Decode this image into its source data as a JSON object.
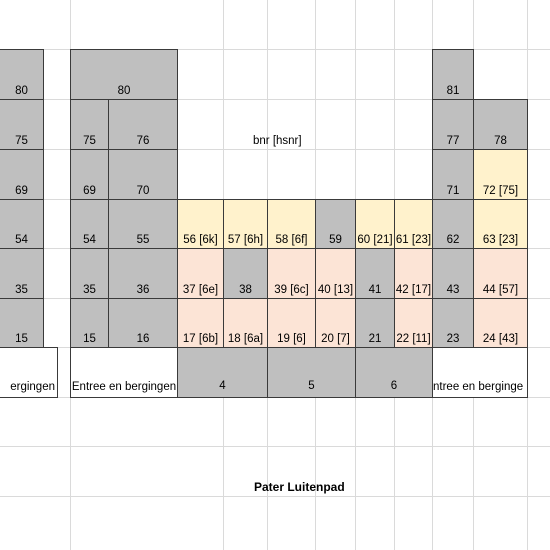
{
  "colors": {
    "gray": "#bfbfbf",
    "yellow": "#fff2cc",
    "peach": "#fce4d6",
    "grid": "#dadada"
  },
  "street_name": "Pater Luitenpad",
  "labels": {
    "left_block": {
      "top": "80",
      "r1": "75",
      "r2": "69",
      "r3": "54",
      "r4": "35",
      "r5": "15",
      "bottom": "ergingen"
    },
    "mid_left_block": {
      "top": "80",
      "r1": [
        "75",
        "76"
      ],
      "r2": [
        "69",
        "70"
      ],
      "r3": [
        "54",
        "55"
      ],
      "r4": [
        "35",
        "36"
      ],
      "r5": [
        "15",
        "16"
      ],
      "bottom": "Entree en bergingen"
    },
    "center": {
      "hsnr_label": "bnr [hsnr]",
      "row54": [
        "56 [6k]",
        "57 [6h]",
        "58 [6f]",
        "59",
        "60 [21]",
        "61  [23]"
      ],
      "row35": [
        "37 [6e]",
        "38",
        "39 [6c]",
        "40 [13]",
        "41",
        "42 [17]"
      ],
      "row15": [
        "17 [6b]",
        "18 [6a]",
        "19 [6]",
        "20 [7]",
        "21",
        "22 [11]"
      ],
      "bottom": [
        "4",
        "5",
        "6"
      ]
    },
    "right_block": {
      "top": "81",
      "r1": [
        "77",
        "78"
      ],
      "r2": [
        "71",
        "72 [75]"
      ],
      "r3": [
        "62",
        "63 [23]"
      ],
      "r4": [
        "43",
        "44 [57]"
      ],
      "r5": [
        "23",
        "24 [43]"
      ],
      "bottom": "ntree en berginge"
    }
  }
}
